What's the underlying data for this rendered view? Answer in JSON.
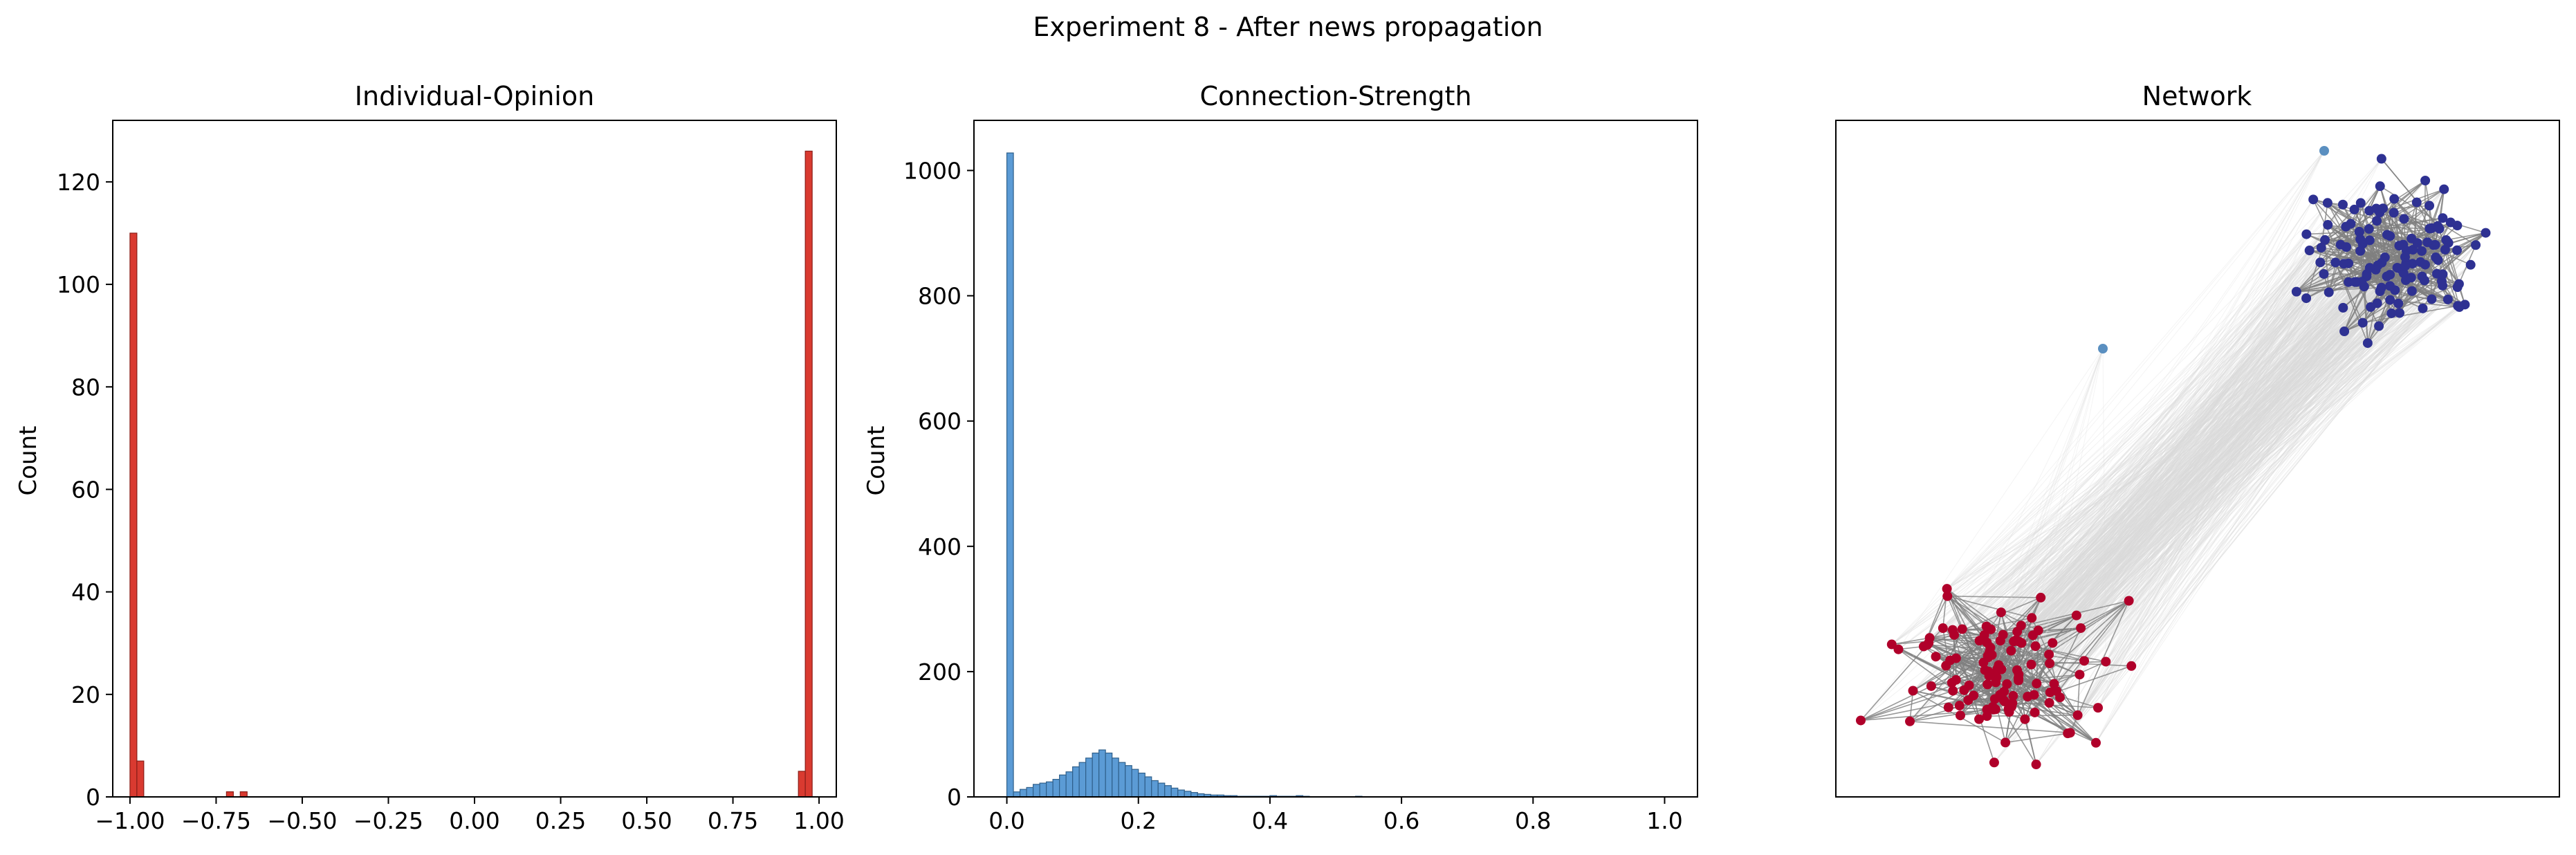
{
  "figure_title": "Experiment 8 - After news propagation",
  "chart_data": [
    {
      "type": "bar",
      "subtype": "histogram",
      "title": "Individual-Opinion",
      "xlabel": "",
      "ylabel": "Count",
      "xlim": [
        -1.05,
        1.05
      ],
      "ylim": [
        0,
        132
      ],
      "xticks": [
        -1.0,
        -0.75,
        -0.5,
        -0.25,
        0.0,
        0.25,
        0.5,
        0.75,
        1.0
      ],
      "xtick_labels": [
        "−1.00",
        "−0.75",
        "−0.50",
        "−0.25",
        "0.00",
        "0.25",
        "0.50",
        "0.75",
        "1.00"
      ],
      "yticks": [
        0,
        20,
        40,
        60,
        80,
        100,
        120
      ],
      "bin_width": 0.02,
      "bins": [
        {
          "x0": -1.0,
          "count": 110
        },
        {
          "x0": -0.98,
          "count": 7
        },
        {
          "x0": -0.72,
          "count": 1
        },
        {
          "x0": -0.68,
          "count": 1
        },
        {
          "x0": 0.94,
          "count": 5
        },
        {
          "x0": 0.96,
          "count": 126
        }
      ],
      "bar_color": "#d93a30",
      "edge_color": "#8a1f19",
      "grid": false
    },
    {
      "type": "bar",
      "subtype": "histogram",
      "title": "Connection-Strength",
      "xlabel": "",
      "ylabel": "Count",
      "xlim": [
        -0.05,
        1.05
      ],
      "ylim": [
        0,
        1080
      ],
      "xticks": [
        0.0,
        0.2,
        0.4,
        0.6,
        0.8,
        1.0
      ],
      "xtick_labels": [
        "0.0",
        "0.2",
        "0.4",
        "0.6",
        "0.8",
        "1.0"
      ],
      "yticks": [
        0,
        200,
        400,
        600,
        800,
        1000
      ],
      "bin_width": 0.01,
      "bin_start": 0.0,
      "counts": [
        1028,
        8,
        12,
        15,
        20,
        22,
        24,
        28,
        35,
        40,
        48,
        55,
        62,
        70,
        75,
        70,
        62,
        55,
        50,
        44,
        38,
        32,
        26,
        22,
        18,
        14,
        11,
        9,
        7,
        5,
        4,
        3,
        3,
        2,
        2,
        1,
        1,
        1,
        1,
        1,
        2,
        1,
        1,
        1,
        2,
        1,
        0,
        0,
        0,
        0,
        0,
        0,
        0,
        1,
        0,
        0,
        0,
        0,
        0,
        0,
        0,
        0,
        0,
        0,
        0,
        0,
        0,
        0,
        0,
        0,
        0,
        0,
        0,
        0,
        0,
        0,
        0,
        0,
        0,
        0,
        0,
        0,
        0,
        0,
        0,
        0,
        0,
        0,
        0,
        0,
        0,
        0,
        0,
        0,
        0,
        0,
        0,
        0,
        0,
        0
      ],
      "bar_color": "#5b9bd5",
      "edge_color": "#2f5f8a",
      "grid": false
    },
    {
      "type": "network",
      "title": "Network",
      "clusters": [
        {
          "color": "#2e3192",
          "nodes": 126
        },
        {
          "color": "#b0002a",
          "nodes": 117
        }
      ],
      "isolated_nodes": 2,
      "isolated_color": "#5a8fc0",
      "intra_edge_color": "#808080",
      "inter_edge_color": "#d9d9d9",
      "axes_visible": false
    }
  ]
}
